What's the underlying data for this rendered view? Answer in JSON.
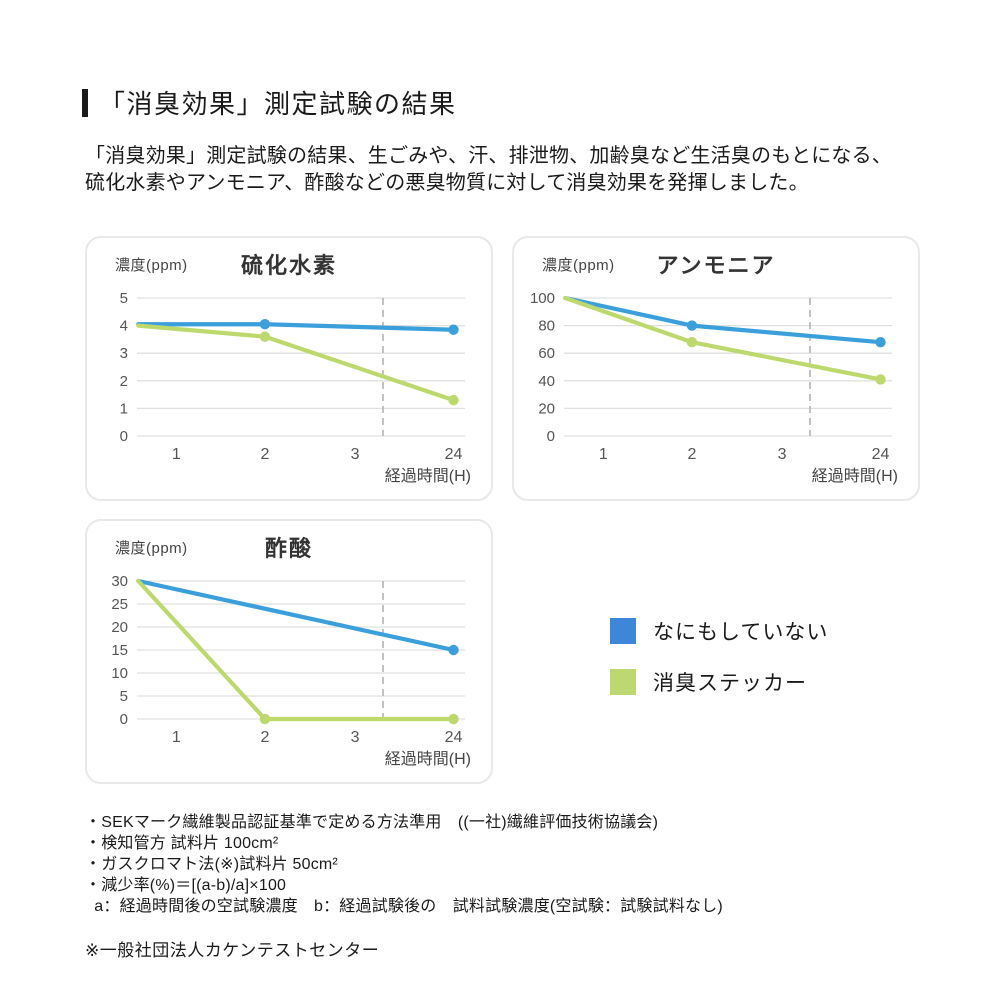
{
  "page": {
    "title": "「消臭効果」測定試験の結果",
    "intro": "「消臭効果」測定試験の結果、生ごみや、汗、排泄物、加齢臭など生活臭のもとになる、\n硫化水素やアンモニア、酢酸などの悪臭物質に対して消臭効果を発揮しました。"
  },
  "colors": {
    "grid": "#e0e0e0",
    "dashed": "#b3b3b3",
    "axis_text": "#555555",
    "line_blue": "#3a9fdb",
    "line_green": "#bdd96e",
    "legend_blue": "#3e86d8",
    "legend_green": "#bdd871"
  },
  "chart_data": [
    {
      "type": "line",
      "title": "硫化水素",
      "ylabel": "濃度(ppm)",
      "xlabel": "経過時間(H)",
      "x_ticks": [
        "1",
        "2",
        "3",
        "24"
      ],
      "y_ticks": [
        0,
        1,
        2,
        3,
        4,
        5
      ],
      "y_max": 5,
      "x_scale": {
        "0": 0.004,
        "1": 0.12,
        "2": 0.39,
        "3": 0.665,
        "24": 0.965
      },
      "marker_fraction": 0.75,
      "grid": "horizontal",
      "series": [
        {
          "name": "なにもしていない",
          "color": "#3a9fdb",
          "points": [
            {
              "t": 0,
              "v": 4.05
            },
            {
              "t": 2,
              "v": 4.05,
              "dot": true
            },
            {
              "t": 24,
              "v": 3.85,
              "dot": true
            }
          ]
        },
        {
          "name": "消臭ステッカー",
          "color": "#bdd96e",
          "points": [
            {
              "t": 0,
              "v": 4.0
            },
            {
              "t": 2,
              "v": 3.6,
              "dot": true
            },
            {
              "t": 24,
              "v": 1.3,
              "dot": true
            }
          ]
        }
      ]
    },
    {
      "type": "line",
      "title": "アンモニア",
      "ylabel": "濃度(ppm)",
      "xlabel": "経過時間(H)",
      "x_ticks": [
        "1",
        "2",
        "3",
        "24"
      ],
      "y_ticks": [
        0,
        20,
        40,
        60,
        80,
        100
      ],
      "y_max": 100,
      "x_scale": {
        "0": 0.004,
        "1": 0.12,
        "2": 0.39,
        "3": 0.665,
        "24": 0.965
      },
      "marker_fraction": 0.75,
      "grid": "horizontal",
      "series": [
        {
          "name": "なにもしていない",
          "color": "#3a9fdb",
          "points": [
            {
              "t": 0,
              "v": 100
            },
            {
              "t": 2,
              "v": 80,
              "dot": true
            },
            {
              "t": 24,
              "v": 68,
              "dot": true
            }
          ]
        },
        {
          "name": "消臭ステッカー",
          "color": "#bdd96e",
          "points": [
            {
              "t": 0,
              "v": 100
            },
            {
              "t": 2,
              "v": 68,
              "dot": true
            },
            {
              "t": 24,
              "v": 41,
              "dot": true
            }
          ]
        }
      ]
    },
    {
      "type": "line",
      "title": "酢酸",
      "ylabel": "濃度(ppm)",
      "xlabel": "経過時間(H)",
      "x_ticks": [
        "1",
        "2",
        "3",
        "24"
      ],
      "y_ticks": [
        0,
        5,
        10,
        15,
        20,
        25,
        30
      ],
      "y_max": 30,
      "x_scale": {
        "0": 0.004,
        "1": 0.12,
        "2": 0.39,
        "3": 0.665,
        "24": 0.965
      },
      "marker_fraction": 0.75,
      "grid": "horizontal",
      "series": [
        {
          "name": "なにもしていない",
          "color": "#3a9fdb",
          "points": [
            {
              "t": 0,
              "v": 30
            },
            {
              "t": 24,
              "v": 15,
              "dot": true
            }
          ]
        },
        {
          "name": "消臭ステッカー",
          "color": "#bdd96e",
          "points": [
            {
              "t": 0,
              "v": 30
            },
            {
              "t": 2,
              "v": 0,
              "dot": true
            },
            {
              "t": 24,
              "v": 0,
              "dot": true
            }
          ]
        }
      ]
    }
  ],
  "legend": {
    "items": [
      {
        "label": "なにもしていない",
        "color": "#3e86d8"
      },
      {
        "label": "消臭ステッカー",
        "color": "#bdd871"
      }
    ]
  },
  "notes": {
    "lines": [
      "・SEKマーク繊維製品認証基準で定める方法準用　((一社)繊維評価技術協議会)",
      "・検知管方 試料片 100cm²",
      "・ガスクロマト法(※)試料片 50cm²",
      "・減少率(%)＝[(a-b)/a]×100",
      "  a：経過時間後の空試験濃度　b：経過試験後の　試料試験濃度(空試験：試験試料なし)"
    ]
  },
  "footnote": {
    "text": "※一般社団法人カケンテストセンター"
  }
}
